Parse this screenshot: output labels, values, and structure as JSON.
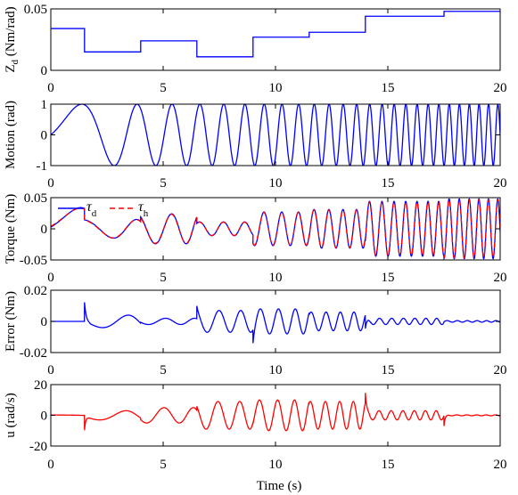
{
  "xlabel": "Time (s)",
  "chart_data": [
    {
      "type": "line",
      "id": "zd",
      "ylabel": "Z",
      "ylabel_sub": "d",
      "ylabel_unit": " (Nm/rad)",
      "xlim": [
        0,
        20
      ],
      "ylim": [
        0,
        0.05
      ],
      "xticks": [
        "0",
        "5",
        "10",
        "15",
        "20"
      ],
      "yticks": [
        {
          "v": 0,
          "t": "0"
        },
        {
          "v": 0.05,
          "t": "0.05"
        }
      ],
      "series": [
        {
          "color": "#0000ff",
          "dash": "",
          "steps": [
            [
              0,
              0.034
            ],
            [
              1.5,
              0.015
            ],
            [
              4,
              0.024
            ],
            [
              6.5,
              0.011
            ],
            [
              9,
              0.027
            ],
            [
              11.5,
              0.031
            ],
            [
              14,
              0.044
            ],
            [
              17.5,
              0.048
            ],
            [
              20,
              0.048
            ]
          ]
        }
      ]
    },
    {
      "type": "line",
      "id": "motion",
      "ylabel": "Motion (rad)",
      "xlim": [
        0,
        20
      ],
      "ylim": [
        -1,
        1
      ],
      "xticks": [
        "0",
        "5",
        "10",
        "15",
        "20"
      ],
      "yticks": [
        {
          "v": -1,
          "t": "-1"
        },
        {
          "v": 0,
          "t": "0"
        },
        {
          "v": 1,
          "t": "1"
        }
      ],
      "series": [
        {
          "color": "#0000ff",
          "dash": "",
          "signal": "chirp"
        }
      ]
    },
    {
      "type": "line",
      "id": "torque",
      "ylabel": "Torque (Nm)",
      "xlim": [
        0,
        20
      ],
      "ylim": [
        -0.05,
        0.05
      ],
      "xticks": [
        "0",
        "5",
        "10",
        "15",
        "20"
      ],
      "yticks": [
        {
          "v": -0.05,
          "t": "-0.05"
        },
        {
          "v": 0,
          "t": "0"
        },
        {
          "v": 0.05,
          "t": "0.05"
        }
      ],
      "legend": {
        "placement": "top-left",
        "entries": [
          {
            "symbol": "τ",
            "sub": "d",
            "color": "#0000ff",
            "dash": ""
          },
          {
            "symbol": "τ",
            "sub": "h",
            "color": "#ff0000",
            "dash": "6,4"
          }
        ]
      },
      "series": [
        {
          "name": "τd",
          "color": "#0000ff",
          "dash": "",
          "signal": "torque_d"
        },
        {
          "name": "τh",
          "color": "#ff0000",
          "dash": "6,4",
          "signal": "torque_h"
        }
      ]
    },
    {
      "type": "line",
      "id": "error",
      "ylabel": "Error (Nm)",
      "xlim": [
        0,
        20
      ],
      "ylim": [
        -0.02,
        0.02
      ],
      "xticks": [
        "0",
        "5",
        "10",
        "15",
        "20"
      ],
      "yticks": [
        {
          "v": -0.02,
          "t": "-0.02"
        },
        {
          "v": 0,
          "t": "0"
        },
        {
          "v": 0.02,
          "t": "0.02"
        }
      ],
      "series": [
        {
          "color": "#0000ff",
          "dash": "",
          "signal": "error",
          "amp": [
            [
              0,
              0
            ],
            [
              1.5,
              0.004
            ],
            [
              4,
              0.002
            ],
            [
              6.5,
              0.007
            ],
            [
              9,
              0.008
            ],
            [
              11.5,
              0.006
            ],
            [
              14,
              0.002
            ],
            [
              17.5,
              0.0005
            ],
            [
              20,
              0.0005
            ]
          ]
        }
      ]
    },
    {
      "type": "line",
      "id": "u",
      "ylabel": "u (rad/s)",
      "xlim": [
        0,
        20
      ],
      "ylim": [
        -20,
        20
      ],
      "xticks": [
        "0",
        "5",
        "10",
        "15",
        "20"
      ],
      "yticks": [
        {
          "v": -20,
          "t": "-20"
        },
        {
          "v": 0,
          "t": "0"
        },
        {
          "v": 20,
          "t": "20"
        }
      ],
      "series": [
        {
          "color": "#ff0000",
          "dash": "",
          "signal": "u",
          "amp": [
            [
              0,
              0.2
            ],
            [
              1.5,
              3
            ],
            [
              4,
              5
            ],
            [
              6.5,
              9
            ],
            [
              9,
              10
            ],
            [
              11.5,
              9
            ],
            [
              14,
              3
            ],
            [
              17.5,
              0.3
            ],
            [
              20,
              0.3
            ]
          ]
        }
      ]
    }
  ]
}
